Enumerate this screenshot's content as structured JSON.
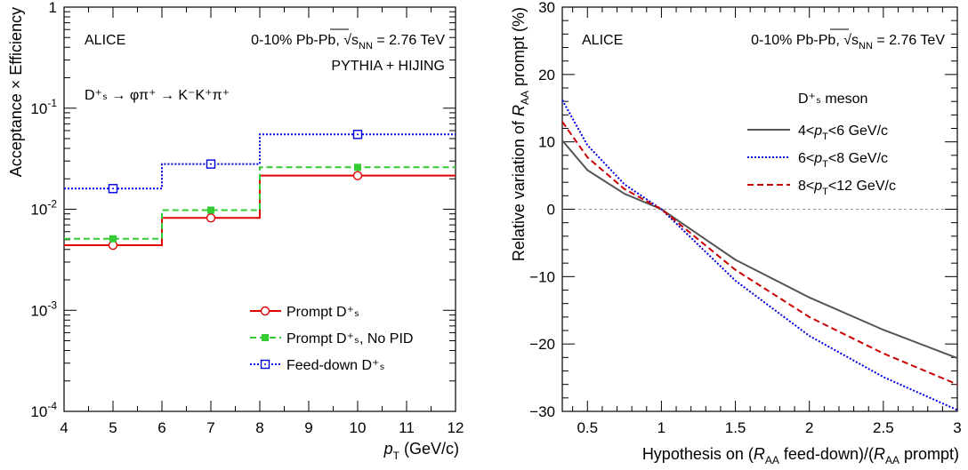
{
  "chart_data": [
    {
      "type": "line",
      "panel": "left",
      "xlabel_main": "p",
      "xlabel_sub": "T",
      "xlabel_unit": " (GeV/c)",
      "ylabel": "Acceptance × Efficiency",
      "xlim": [
        4,
        12
      ],
      "ylim_log10": [
        -4,
        0
      ],
      "yscale": "log",
      "x_ticks": [
        "4",
        "5",
        "6",
        "7",
        "8",
        "9",
        "10",
        "11",
        "12"
      ],
      "y_ticks": [
        {
          "base": "10",
          "exp": "-4",
          "value": -4
        },
        {
          "base": "10",
          "exp": "-3",
          "value": -3
        },
        {
          "base": "10",
          "exp": "-2",
          "value": -2
        },
        {
          "base": "10",
          "exp": "-1",
          "value": -1
        },
        {
          "base": "1",
          "exp": "",
          "value": 0
        }
      ],
      "annotations": {
        "experiment": "ALICE",
        "system": "0-10% Pb-Pb, √s",
        "system_sub": "NN",
        "system_tail": " = 2.76 TeV",
        "generator": "PYTHIA + HIJING",
        "decay": "D⁺ₛ → φπ⁺ → K⁻K⁺π⁺"
      },
      "bin_edges": [
        4,
        6,
        8,
        12
      ],
      "bin_centers": [
        5,
        7,
        10
      ],
      "series": [
        {
          "name": "Prompt D⁺ₛ",
          "values": [
            0.0044,
            0.0082,
            0.0215
          ],
          "color": "#e00000",
          "line": "solid",
          "marker": "open-circle"
        },
        {
          "name": "Prompt D⁺ₛ, No PID",
          "values": [
            0.0051,
            0.0098,
            0.026
          ],
          "color": "#33cc33",
          "line": "dashed",
          "marker": "filled-square"
        },
        {
          "name": "Feed-down D⁺ₛ",
          "values": [
            0.016,
            0.028,
            0.055
          ],
          "color": "#0000e0",
          "line": "dotted",
          "marker": "open-square"
        }
      ]
    },
    {
      "type": "line",
      "panel": "right",
      "xlabel": "Hypothesis on (R_AA feed-down)/(R_AA prompt)",
      "ylabel": "Relative variation of R_AA prompt (%)",
      "xlim": [
        0.33,
        3
      ],
      "ylim": [
        -30,
        30
      ],
      "x_ticks": [
        "0.5",
        "1",
        "1.5",
        "2",
        "2.5",
        "3"
      ],
      "y_ticks": [
        "−30",
        "−20",
        "−10",
        "0",
        "10",
        "20",
        "30"
      ],
      "annotations": {
        "experiment": "ALICE",
        "system": "0-10% Pb-Pb, √s",
        "system_sub": "NN",
        "system_tail": " = 2.76 TeV",
        "legend_title": "D⁺ₛ meson"
      },
      "series": [
        {
          "name": "4<p_T<6 GeV/c",
          "x": [
            0.33,
            0.5,
            0.75,
            1,
            1.5,
            2,
            2.5,
            3
          ],
          "values": [
            10.2,
            5.8,
            2.3,
            0,
            -7.5,
            -13.1,
            -17.9,
            -22.1
          ],
          "color": "#555555",
          "line": "solid"
        },
        {
          "name": "6<p_T<8 GeV/c",
          "x": [
            0.33,
            0.5,
            0.75,
            1,
            1.5,
            2,
            2.5,
            3
          ],
          "values": [
            16.2,
            9.5,
            3.7,
            0,
            -10.6,
            -18.8,
            -24.9,
            -29.8
          ],
          "color": "#0000e0",
          "line": "dotted"
        },
        {
          "name": "8<p_T<12 GeV/c",
          "x": [
            0.33,
            0.5,
            0.75,
            1,
            1.5,
            2,
            2.5,
            3
          ],
          "values": [
            13.0,
            7.7,
            3.0,
            0,
            -9.0,
            -16.0,
            -21.4,
            -26.0
          ],
          "color": "#cc0000",
          "line": "dashed"
        }
      ]
    }
  ]
}
